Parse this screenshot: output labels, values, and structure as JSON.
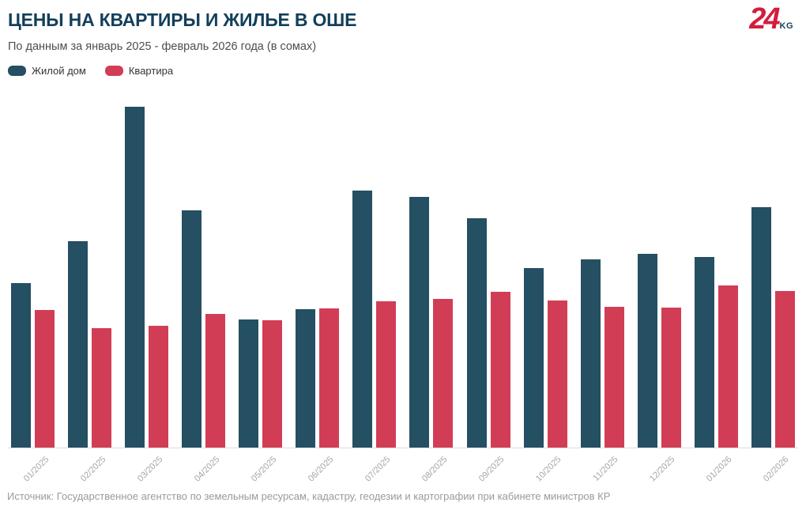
{
  "header": {
    "title": "ЦЕНЫ НА КВАРТИРЫ И ЖИЛЬЕ В ОШЕ",
    "subtitle": "По данным за январь 2025 - февраль 2026 года (в сомах)"
  },
  "logo": {
    "number": "24",
    "suffix": "KG",
    "number_color": "#d41c3c",
    "suffix_color": "#16435c"
  },
  "legend": [
    {
      "label": "Жилой дом",
      "color": "#254f62"
    },
    {
      "label": "Квартира",
      "color": "#d23d56"
    }
  ],
  "chart_data": {
    "type": "bar",
    "title": "ЦЕНЫ НА КВАРТИРЫ И ЖИЛЬЕ В ОШЕ",
    "subtitle": "По данным за январь 2025 - февраль 2026 года (в сомах)",
    "categories": [
      "01/2025",
      "02/2025",
      "03/2025",
      "04/2025",
      "05/2025",
      "06/2025",
      "07/2025",
      "08/2025",
      "09/2025",
      "10/2025",
      "11/2025",
      "12/2025",
      "01/2026",
      "02/2026"
    ],
    "series": [
      {
        "name": "Жилой дом",
        "color": "#254f62",
        "values": [
          208,
          261,
          431,
          300,
          162,
          175,
          325,
          317,
          290,
          227,
          238,
          245,
          241,
          304
        ]
      },
      {
        "name": "Квартира",
        "color": "#d23d56",
        "values": [
          174,
          151,
          154,
          169,
          161,
          176,
          185,
          188,
          197,
          186,
          178,
          177,
          205,
          198
        ]
      }
    ],
    "ylabel": "",
    "xlabel": "",
    "ylim": [
      0,
      446
    ],
    "y_axis_labels_visible": false,
    "value_unit_note": "y-axis is unlabeled in the image; values are relative bar heights estimated in screenshot pixels",
    "grid": false,
    "legend_position": "top-left",
    "x_tick_rotation_deg": -45
  },
  "footer": {
    "source": "Источник: Государственное агентство по земельным ресурсам, кадастру, геодезии и картографии при кабинете министров КР"
  }
}
